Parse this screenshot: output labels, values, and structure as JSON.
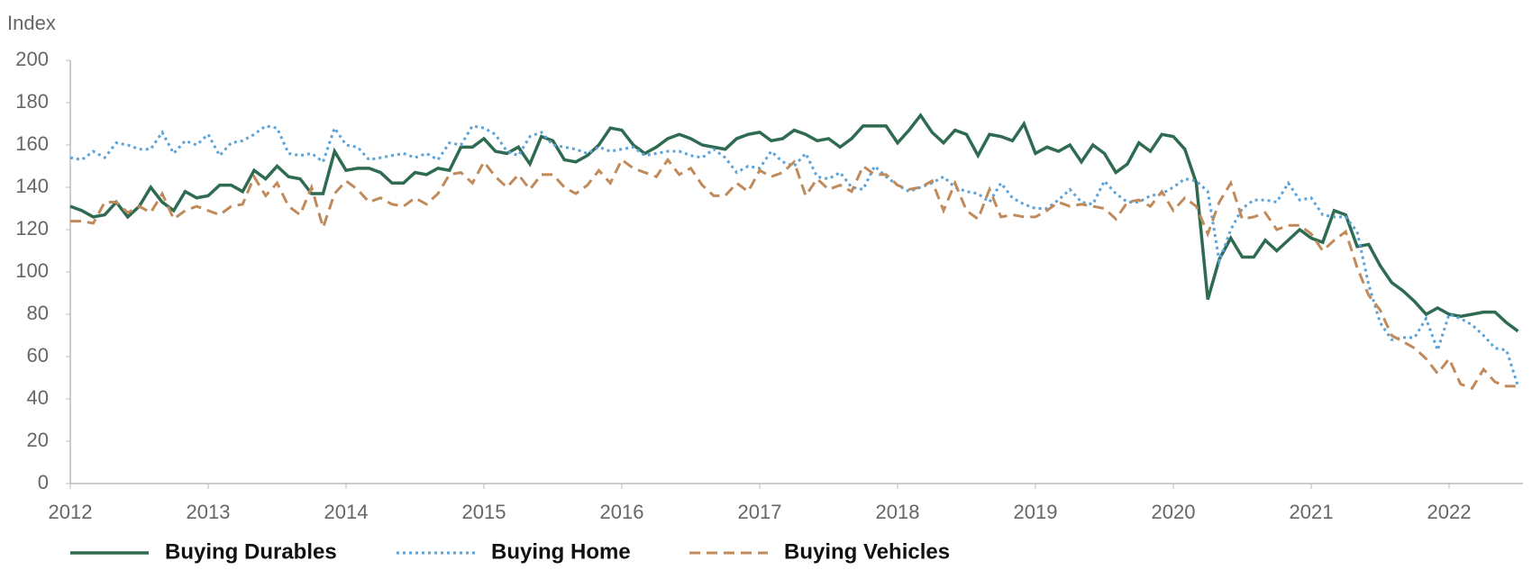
{
  "chart_data": {
    "type": "line",
    "y_label": "Index",
    "categories": [
      "2012",
      null,
      null,
      null,
      null,
      null,
      null,
      null,
      null,
      null,
      null,
      null,
      "2013",
      null,
      null,
      null,
      null,
      null,
      null,
      null,
      null,
      null,
      null,
      null,
      "2014",
      null,
      null,
      null,
      null,
      null,
      null,
      null,
      null,
      null,
      null,
      null,
      "2015",
      null,
      null,
      null,
      null,
      null,
      null,
      null,
      null,
      null,
      null,
      null,
      "2016",
      null,
      null,
      null,
      null,
      null,
      null,
      null,
      null,
      null,
      null,
      null,
      "2017",
      null,
      null,
      null,
      null,
      null,
      null,
      null,
      null,
      null,
      null,
      null,
      "2018",
      null,
      null,
      null,
      null,
      null,
      null,
      null,
      null,
      null,
      null,
      null,
      "2019",
      null,
      null,
      null,
      null,
      null,
      null,
      null,
      null,
      null,
      null,
      null,
      "2020",
      null,
      null,
      null,
      null,
      null,
      null,
      null,
      null,
      null,
      null,
      null,
      "2021",
      null,
      null,
      null,
      null,
      null,
      null,
      null,
      null,
      null,
      null,
      null,
      "2022",
      null,
      null,
      null,
      null,
      null,
      null
    ],
    "series": [
      {
        "name": "Buying Durables",
        "color": "#2e6b50",
        "style": "solid",
        "values": [
          131,
          129,
          126,
          127,
          133,
          126,
          131,
          140,
          133,
          129,
          138,
          135,
          136,
          141,
          141,
          138,
          148,
          144,
          150,
          145,
          144,
          137,
          137,
          157,
          148,
          149,
          149,
          147,
          142,
          142,
          147,
          146,
          149,
          148,
          159,
          159,
          163,
          157,
          156,
          159,
          151,
          164,
          162,
          153,
          152,
          155,
          160,
          168,
          167,
          160,
          156,
          159,
          163,
          165,
          163,
          160,
          159,
          158,
          163,
          165,
          166,
          162,
          163,
          167,
          165,
          162,
          163,
          159,
          163,
          169,
          169,
          169,
          161,
          167,
          174,
          166,
          161,
          167,
          165,
          155,
          165,
          164,
          162,
          170,
          156,
          159,
          157,
          160,
          152,
          160,
          156,
          147,
          151,
          161,
          157,
          165,
          164,
          158,
          142,
          87,
          106,
          116,
          107,
          107,
          115,
          110,
          115,
          120,
          116,
          114,
          129,
          127,
          112,
          113,
          103,
          95,
          91,
          86,
          80,
          83,
          80,
          79,
          80,
          81,
          81,
          76,
          72
        ]
      },
      {
        "name": "Buying Home",
        "color": "#5ba3d9",
        "style": "dotted",
        "values": [
          154,
          153,
          157,
          154,
          161,
          160,
          158,
          158,
          166,
          156,
          162,
          160,
          165,
          155,
          161,
          162,
          165,
          169,
          168,
          156,
          155,
          156,
          152,
          168,
          160,
          159,
          153,
          154,
          155,
          156,
          154,
          156,
          153,
          161,
          160,
          169,
          168,
          165,
          157,
          155,
          164,
          166,
          160,
          159,
          158,
          156,
          159,
          157,
          158,
          159,
          155,
          156,
          157,
          157,
          155,
          154,
          158,
          154,
          147,
          150,
          149,
          157,
          152,
          150,
          156,
          145,
          144,
          147,
          140,
          139,
          150,
          145,
          141,
          138,
          140,
          142,
          145,
          140,
          138,
          137,
          133,
          142,
          135,
          132,
          130,
          130,
          134,
          139,
          133,
          132,
          143,
          137,
          133,
          133,
          136,
          137,
          140,
          144,
          143,
          138,
          105,
          120,
          130,
          134,
          134,
          133,
          142,
          134,
          135,
          127,
          126,
          126,
          119,
          94,
          76,
          68,
          69,
          69,
          78,
          63,
          80,
          78,
          75,
          70,
          64,
          63,
          46
        ]
      },
      {
        "name": "Buying Vehicles",
        "color": "#c08a5a",
        "style": "dashed",
        "values": [
          124,
          124,
          123,
          133,
          133,
          128,
          131,
          128,
          137,
          125,
          129,
          131,
          129,
          127,
          131,
          132,
          145,
          136,
          142,
          131,
          127,
          140,
          121,
          137,
          143,
          139,
          133,
          135,
          132,
          131,
          135,
          132,
          137,
          146,
          147,
          142,
          152,
          145,
          140,
          146,
          139,
          146,
          146,
          140,
          137,
          141,
          148,
          142,
          153,
          149,
          147,
          145,
          153,
          146,
          149,
          141,
          136,
          136,
          142,
          138,
          148,
          145,
          147,
          152,
          136,
          144,
          139,
          141,
          138,
          150,
          146,
          146,
          141,
          139,
          140,
          143,
          129,
          142,
          129,
          125,
          139,
          126,
          127,
          126,
          126,
          129,
          133,
          131,
          132,
          131,
          130,
          125,
          133,
          134,
          131,
          138,
          129,
          135,
          131,
          118,
          133,
          142,
          125,
          126,
          128,
          120,
          122,
          122,
          118,
          110,
          115,
          119,
          102,
          89,
          82,
          70,
          67,
          64,
          59,
          52,
          59,
          47,
          45,
          54,
          48,
          46,
          46
        ]
      }
    ],
    "ylim": [
      0,
      200
    ],
    "yticks": [
      0,
      20,
      40,
      60,
      80,
      100,
      120,
      140,
      160,
      180,
      200
    ],
    "grid": false,
    "legend": "bottom"
  }
}
